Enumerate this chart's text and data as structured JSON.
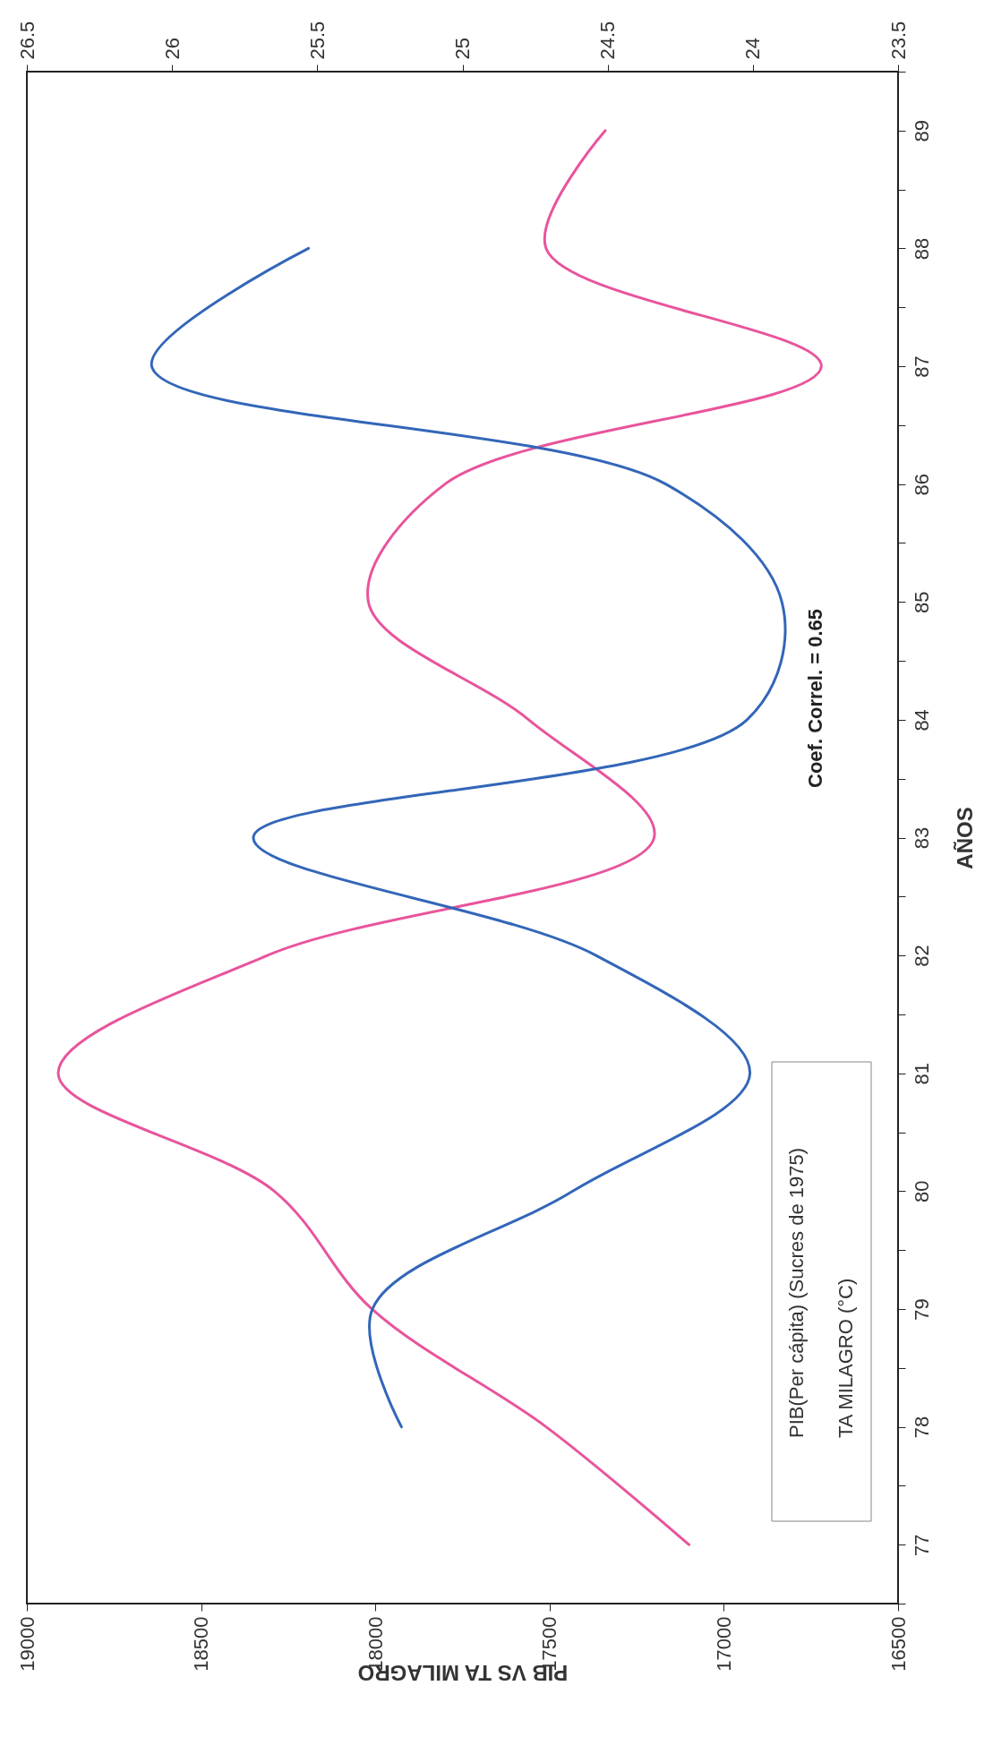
{
  "chart_data": {
    "type": "line",
    "xlabel": "PIB VS TA MILAGRO",
    "ylabel": "AÑOS",
    "annotations": [
      "Coef. Correl. = 0.65"
    ],
    "series": [
      {
        "name": "PIB(Per cápita) (Sucres de 1975)",
        "color": "#e8549c",
        "x": [
          17100,
          17510,
          18010,
          18290,
          18910,
          18310,
          17200,
          17560,
          18020,
          17800,
          16720,
          17510,
          17340
        ],
        "values": [
          77,
          78,
          79,
          80,
          81,
          82,
          83,
          84,
          85,
          86,
          87,
          88,
          89
        ]
      },
      {
        "name": "TA MILAGRO (°C)",
        "color": "#3366b8",
        "axis": "x2",
        "x": [
          25.21,
          25.31,
          24.62,
          24.01,
          24.54,
          25.72,
          24.02,
          23.9,
          24.3,
          26.07,
          25.53
        ],
        "values": [
          78,
          79,
          80,
          81,
          82,
          83,
          84,
          85,
          86,
          87,
          88
        ]
      }
    ],
    "ylim": [
      76.5,
      89.5
    ],
    "yticks": [
      {
        "value": 76.5,
        "label": null
      },
      77,
      {
        "value": 77.5,
        "label": null
      },
      78,
      {
        "value": 78.5,
        "label": null
      },
      79,
      {
        "value": 79.5,
        "label": null
      },
      80,
      {
        "value": 80.5,
        "label": null
      },
      81,
      {
        "value": 81.5,
        "label": null
      },
      82,
      {
        "value": 82.5,
        "label": null
      },
      83,
      {
        "value": 83.5,
        "label": null
      },
      84,
      {
        "value": 84.5,
        "label": null
      },
      85,
      {
        "value": 85.5,
        "label": null
      },
      86,
      {
        "value": 86.5,
        "label": null
      },
      87,
      {
        "value": 87.5,
        "label": null
      },
      88,
      {
        "value": 88.5,
        "label": null
      },
      89,
      {
        "value": 89.5,
        "label": null
      }
    ],
    "xlim": [
      19000,
      16500
    ],
    "xticks": [
      19000,
      18500,
      18000,
      17500,
      17000,
      16500
    ],
    "x2lim": [
      26.5,
      23.5
    ],
    "x2ticks": [
      26.5,
      26,
      25.5,
      25,
      24.5,
      24,
      23.5
    ],
    "grid": false,
    "legend": "bottom right",
    "marker": "none",
    "line_style": "solid"
  }
}
